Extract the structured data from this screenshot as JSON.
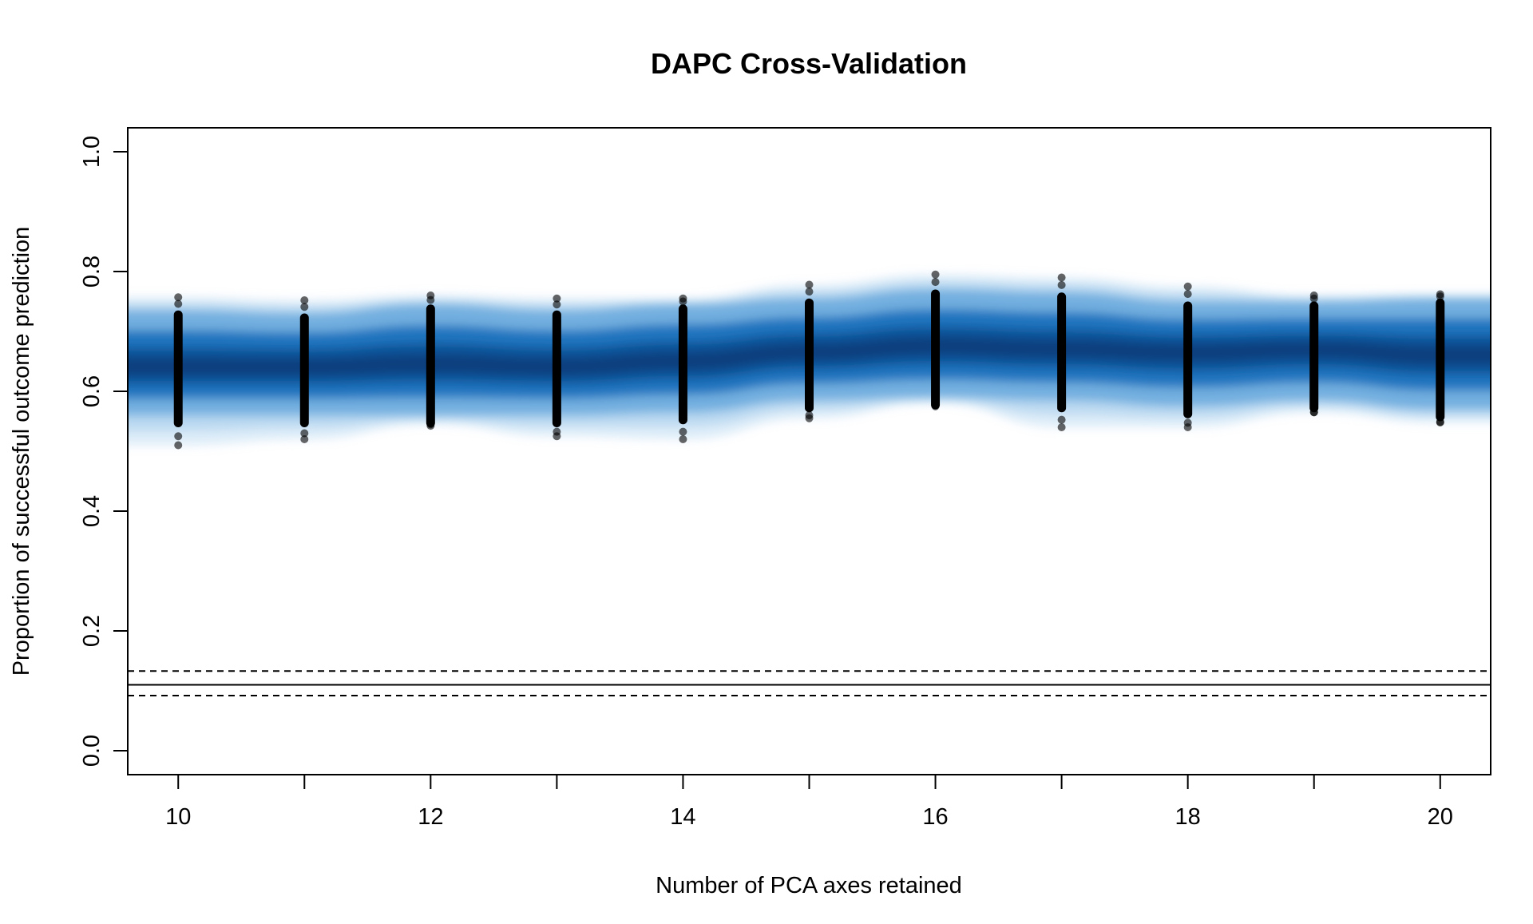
{
  "chart_data": {
    "type": "scatter",
    "title": "DAPC Cross-Validation",
    "xlabel": "Number of PCA axes retained",
    "ylabel": "Proportion of successful outcome prediction",
    "xlim": [
      9.6,
      20.4
    ],
    "ylim": [
      -0.04,
      1.04
    ],
    "x_ticks": [
      10,
      12,
      14,
      16,
      18,
      20
    ],
    "x_tick_labels": [
      "10",
      "12",
      "14",
      "16",
      "18",
      "20"
    ],
    "y_ticks": [
      0,
      0.2,
      0.4,
      0.6,
      0.8,
      1
    ],
    "y_tick_labels": [
      "0.0",
      "0.2",
      "0.4",
      "0.6",
      "0.8",
      "1.0"
    ],
    "grid": false,
    "colors": {
      "band_dark": "#083a78",
      "band_mid": "#0e6ab8",
      "band_light": "#9ec8ea",
      "points": "#000000",
      "reference_lines": "#000000"
    },
    "series": [
      {
        "x": [
          10,
          11,
          12,
          13,
          14,
          15,
          16,
          17,
          18,
          19,
          20
        ],
        "mean": [
          0.64,
          0.64,
          0.645,
          0.64,
          0.65,
          0.665,
          0.675,
          0.67,
          0.665,
          0.67,
          0.66
        ],
        "q_low": [
          0.56,
          0.56,
          0.56,
          0.56,
          0.565,
          0.585,
          0.59,
          0.585,
          0.575,
          0.585,
          0.57
        ],
        "q_high": [
          0.735,
          0.73,
          0.745,
          0.735,
          0.745,
          0.755,
          0.77,
          0.765,
          0.75,
          0.75,
          0.755
        ],
        "min": [
          0.51,
          0.52,
          0.545,
          0.525,
          0.52,
          0.555,
          0.58,
          0.54,
          0.54,
          0.565,
          0.548
        ],
        "max": [
          0.757,
          0.752,
          0.76,
          0.755,
          0.755,
          0.778,
          0.795,
          0.79,
          0.775,
          0.76,
          0.762
        ]
      }
    ],
    "reference_lines": [
      {
        "style": "solid",
        "y": 0.11
      },
      {
        "style": "dashed",
        "y": 0.133
      },
      {
        "style": "dashed",
        "y": 0.092
      }
    ]
  }
}
